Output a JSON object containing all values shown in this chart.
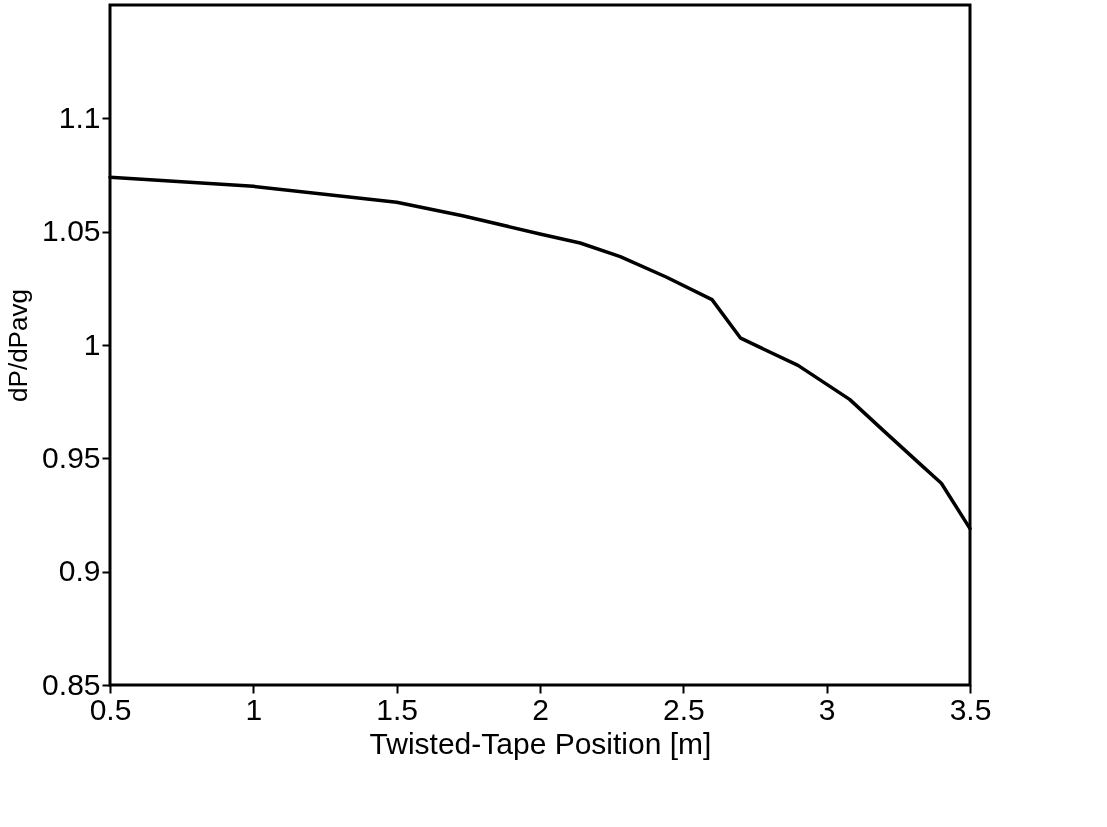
{
  "chart_data": {
    "type": "line",
    "xlabel": "Twisted-Tape Position [m]",
    "ylabel": "dP/dPavg",
    "x": [
      0.5,
      1.0,
      1.5,
      1.73,
      2.0,
      2.14,
      2.28,
      2.44,
      2.6,
      2.7,
      2.9,
      3.08,
      3.2,
      3.33,
      3.4,
      3.5
    ],
    "series": [
      {
        "color": "#000000",
        "values": [
          1.074,
          1.07,
          1.063,
          1.057,
          1.049,
          1.045,
          1.039,
          1.03,
          1.02,
          1.003,
          0.991,
          0.976,
          0.962,
          0.947,
          0.939,
          0.919
        ]
      }
    ],
    "xlim": [
      0.5,
      3.5
    ],
    "xticks": [
      0.5,
      1,
      1.5,
      2,
      2.5,
      3,
      3.5
    ],
    "ylim": [
      0.85,
      1.15
    ],
    "yticks": [
      0.85,
      0.9,
      0.95,
      1,
      1.05,
      1.1
    ],
    "grid": false,
    "marker": "none",
    "line_style": "solid"
  }
}
